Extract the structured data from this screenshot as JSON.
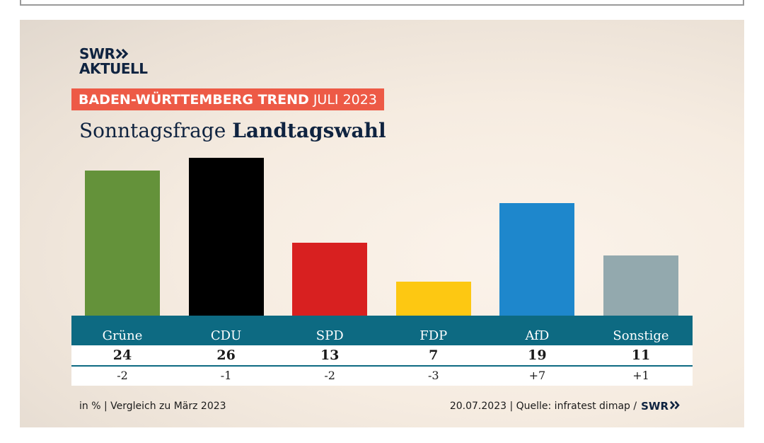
{
  "logo": {
    "line1": "SWR",
    "line2": "AKTUELL"
  },
  "banner": {
    "bold": "BADEN-WÜRTTEMBERG TREND",
    "light": "JULI 2023"
  },
  "headline": {
    "regular": "Sonntagsfrage",
    "bold": "Landtagswahl"
  },
  "chart_data": {
    "type": "bar",
    "categories": [
      "Grüne",
      "CDU",
      "SPD",
      "FDP",
      "AfD",
      "Sonstige"
    ],
    "values": [
      24,
      26,
      13,
      7,
      19,
      11
    ],
    "changes": [
      "-2",
      "-1",
      "-2",
      "-3",
      "+7",
      "+1"
    ],
    "colors": [
      "#64923a",
      "#000000",
      "#d82020",
      "#fdc812",
      "#1e87cc",
      "#93a9ae"
    ],
    "title": "Sonntagsfrage Landtagswahl",
    "ylim": [
      0,
      26
    ]
  },
  "footer": {
    "left": "in % | Vergleich zu März 2023",
    "right": "20.07.2023 | Quelle: infratest dimap /",
    "brand": "SWR"
  },
  "colors": {
    "band": "#0d6a82",
    "banner": "#ed5a46",
    "navy": "#0f2340"
  }
}
